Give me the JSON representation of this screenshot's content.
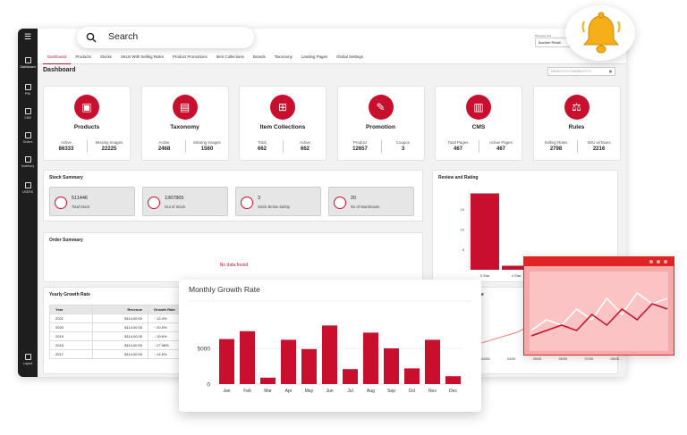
{
  "search": {
    "label": "Search"
  },
  "business_unit": {
    "label": "Business Unit",
    "value": "Buchtel Retail"
  },
  "rail": [
    {
      "key": "dashboard",
      "label": "Dashboard"
    },
    {
      "key": "pim",
      "label": "PIM"
    },
    {
      "key": "cms",
      "label": "CMS"
    },
    {
      "key": "orders",
      "label": "Orders"
    },
    {
      "key": "inventory",
      "label": "Inventory"
    },
    {
      "key": "users",
      "label": "USERS"
    },
    {
      "key": "logout",
      "label": "Logout"
    }
  ],
  "tabs": [
    "Dashboard",
    "Products",
    "Stocks",
    "SKUs With Selling Rules",
    "Product Promotions",
    "Item Collections",
    "Brands",
    "Taxonomy",
    "Landing Pages",
    "Global Settings"
  ],
  "page_title": "Dashboard",
  "date_range": {
    "placeholder": "MM/DD/YYYY-MM/DD/YYYY"
  },
  "modules": [
    {
      "title": "Products",
      "s1": {
        "label": "Active",
        "value": "86333"
      },
      "s2": {
        "label": "Missing Images",
        "value": "22225"
      }
    },
    {
      "title": "Taxonomy",
      "s1": {
        "label": "Active",
        "value": "2468"
      },
      "s2": {
        "label": "Missing Images",
        "value": "1560"
      }
    },
    {
      "title": "Item Collections",
      "s1": {
        "label": "Total",
        "value": "662"
      },
      "s2": {
        "label": "Active",
        "value": "662"
      }
    },
    {
      "title": "Promotion",
      "s1": {
        "label": "Product",
        "value": "12657"
      },
      "s2": {
        "label": "Coupon",
        "value": "3"
      }
    },
    {
      "title": "CMS",
      "s1": {
        "label": "Total Pages",
        "value": "467"
      },
      "s2": {
        "label": "Active Pages",
        "value": "467"
      }
    },
    {
      "title": "Rules",
      "s1": {
        "label": "Selling Rules",
        "value": "2798"
      },
      "s2": {
        "label": "SKU w/Taxes",
        "value": "2216"
      }
    }
  ],
  "stock_summary": {
    "title": "Stock Summary",
    "items": [
      {
        "value": "511446",
        "label": "Total Stock"
      },
      {
        "value": "1367865",
        "label": "Out of Stock"
      },
      {
        "value": "3",
        "label": "Stock Below Safety"
      },
      {
        "value": "20",
        "label": "No of Warehouse"
      }
    ]
  },
  "order_summary": {
    "title": "Order Summary",
    "empty": "No data found"
  },
  "yearly_growth": {
    "title": "Yearly Growth Rate",
    "headers": [
      "Year",
      "Revenue",
      "Growth Rate"
    ],
    "rows": [
      {
        "year": "2021",
        "revenue": "$114,00.00",
        "growth": "12.4%",
        "dir": "up"
      },
      {
        "year": "2020",
        "revenue": "$114,00.00",
        "growth": "20.5%",
        "dir": "up"
      },
      {
        "year": "2019",
        "revenue": "$114,00.00",
        "growth": "19.6%",
        "dir": "down"
      },
      {
        "year": "2018",
        "revenue": "$114,00.00",
        "growth": "27.96%",
        "dir": "up"
      },
      {
        "year": "2017",
        "revenue": "$114,00.00",
        "growth": "14.5%",
        "dir": "down"
      }
    ]
  },
  "review_rating": {
    "title": "Review and Rating",
    "partial_title": "e"
  },
  "trend_dates": [
    "04/05",
    "04/05",
    "05/05",
    "06/05",
    "07/05",
    "08/05"
  ],
  "colors": {
    "brand": "#c8102e",
    "rail": "#1e1e1e",
    "pink_panel": "#f7a8a8"
  },
  "chart_data": [
    {
      "type": "bar",
      "title": "Monthly Growth Rate",
      "categories": [
        "Jan",
        "Feb",
        "Mar",
        "Apr",
        "May",
        "Jun",
        "Jul",
        "Aug",
        "Sep",
        "Oct",
        "Nov",
        "Dec"
      ],
      "values": [
        6300,
        7400,
        900,
        6200,
        4900,
        8200,
        2100,
        7200,
        5000,
        2200,
        6200,
        1100
      ],
      "ylim": [
        0,
        10000
      ],
      "yticks": [
        0,
        5000
      ],
      "grid": true
    },
    {
      "type": "bar",
      "categories": [
        "5 Star",
        "4 Star"
      ],
      "values": [
        19,
        1
      ],
      "ylim": [
        0,
        20
      ],
      "yticks": [
        5,
        10,
        15
      ]
    },
    {
      "type": "line",
      "series": [
        {
          "values": [
            3,
            5,
            4,
            7,
            5,
            9,
            6,
            10,
            8,
            9
          ]
        },
        {
          "values": [
            2,
            3,
            4,
            3,
            6,
            4,
            7,
            5,
            8,
            7
          ]
        }
      ]
    }
  ]
}
